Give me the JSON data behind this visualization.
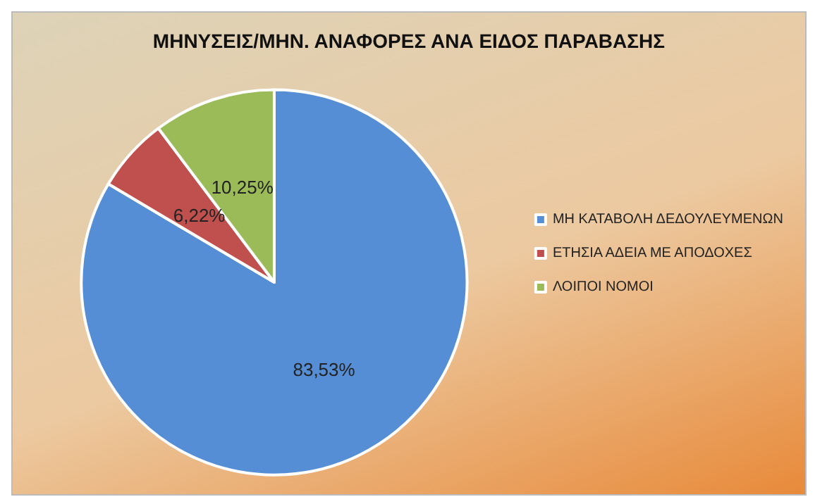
{
  "chart_data": {
    "type": "pie",
    "title": "ΜΗΝΥΣΕΙΣ/ΜΗΝ. ΑΝΑΦΟΡΕΣ ΑΝΑ ΕΙΔΟΣ ΠΑΡΑΒΑΣΗΣ",
    "categories": [
      "ΜΗ ΚΑΤΑΒΟΛΗ ΔΕΔΟΥΛΕΥΜΕΝΩΝ",
      "ΕΤΗΣΙΑ ΑΔΕΙΑ ΜΕ ΑΠΟΔΟΧΕΣ",
      "ΛΟΙΠΟΙ ΝΟΜΟΙ"
    ],
    "values": [
      83.53,
      6.22,
      10.25
    ],
    "value_labels": [
      "83,53%",
      "6,22%",
      "10,25%"
    ],
    "colors": [
      "#558ed5",
      "#c0504d",
      "#9bbb59"
    ],
    "legend": "right"
  }
}
